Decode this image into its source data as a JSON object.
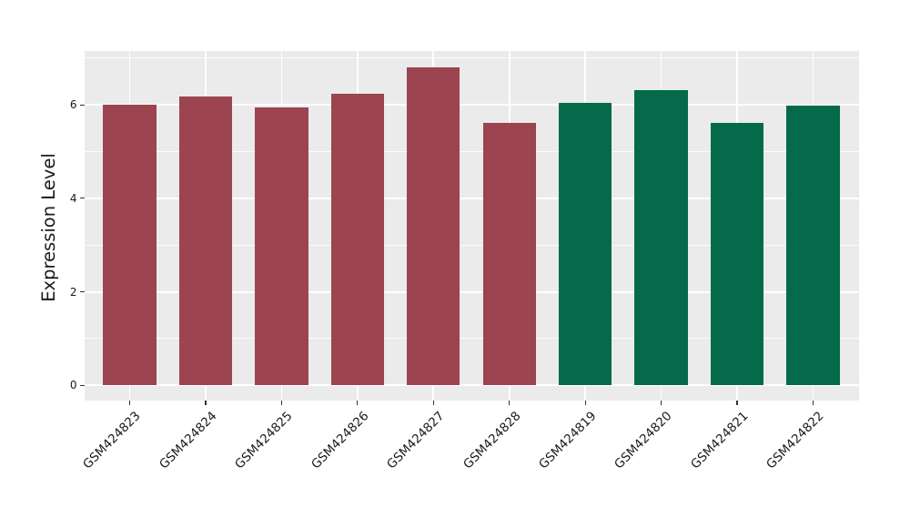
{
  "figure": {
    "background": "#ffffff"
  },
  "chart_data": {
    "type": "bar",
    "title": "",
    "xlabel": "",
    "ylabel": "Expression Level",
    "categories": [
      "GSM424823",
      "GSM424824",
      "GSM424825",
      "GSM424826",
      "GSM424827",
      "GSM424828",
      "GSM424819",
      "GSM424820",
      "GSM424821",
      "GSM424822"
    ],
    "values": [
      6.01,
      6.17,
      5.95,
      6.24,
      6.81,
      5.62,
      6.04,
      6.32,
      5.61,
      5.98
    ],
    "bar_colors": [
      "#9c4450",
      "#9c4450",
      "#9c4450",
      "#9c4450",
      "#9c4450",
      "#9c4450",
      "#046a4a",
      "#046a4a",
      "#046a4a",
      "#046a4a"
    ],
    "yticks": [
      0,
      2,
      4,
      6
    ],
    "yminor": [
      1,
      3,
      5,
      7
    ],
    "ylim": [
      -0.31,
      7.16
    ],
    "legend": "none",
    "grid": "on",
    "colors": {
      "panel_bg": "#ebebeb",
      "grid_major": "#ffffff",
      "grid_minor": "#ffffff",
      "tick_mark": "#333333",
      "axis_text": "#1a1a1a",
      "axis_title": "#1a1a1a"
    }
  }
}
